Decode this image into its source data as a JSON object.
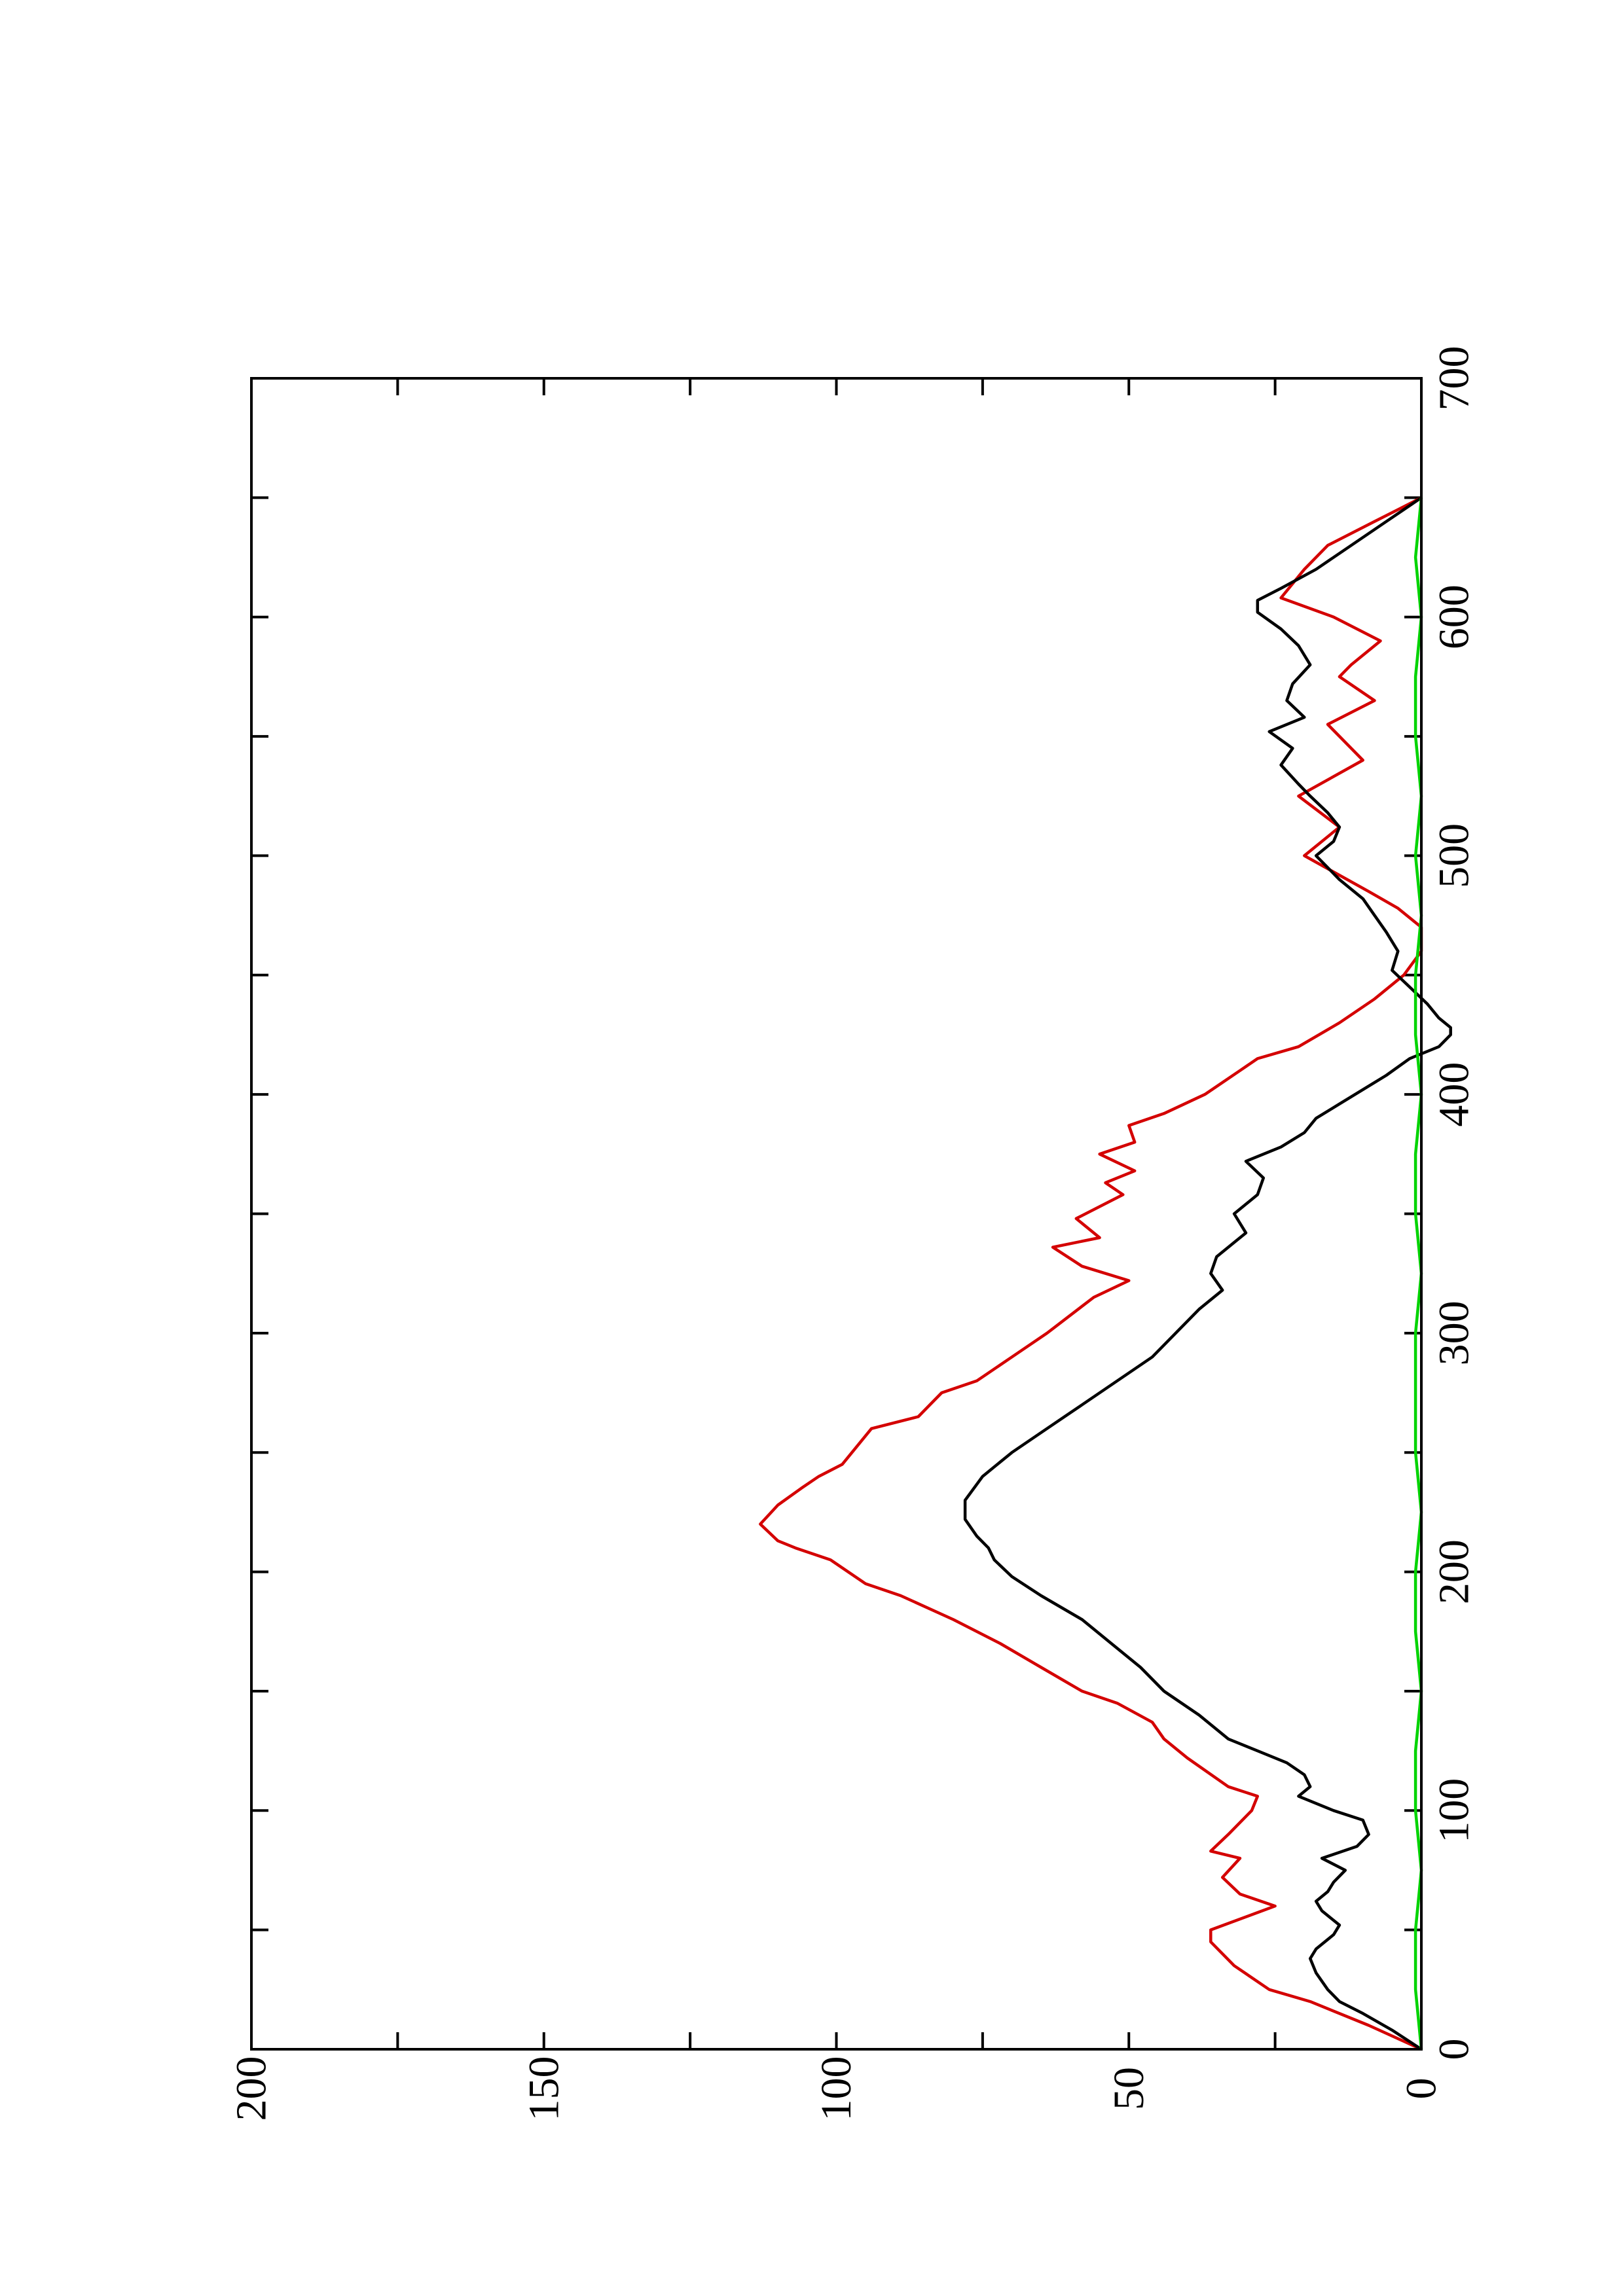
{
  "chart_data": {
    "type": "line",
    "orientation": "rotated-90-ccw",
    "title": "",
    "xlabel": "",
    "ylabel": "",
    "xlim": [
      0,
      700
    ],
    "ylim": [
      0,
      200
    ],
    "x_ticks": [
      0,
      100,
      200,
      300,
      400,
      500,
      600,
      700
    ],
    "x_minor_ticks": [
      50,
      150,
      250,
      350,
      450,
      550,
      650
    ],
    "y_ticks": [
      0,
      50,
      100,
      150,
      200
    ],
    "y_minor_ticks": [
      25,
      75,
      125,
      175
    ],
    "x_tick_labels": [
      "0",
      "100",
      "200",
      "300",
      "400",
      "500",
      "600",
      "700"
    ],
    "y_tick_labels": [
      "0",
      "50",
      "100",
      "150",
      "200"
    ],
    "grid": false,
    "legend": "none",
    "series": [
      {
        "color": "#d40000",
        "x": [
          0,
          10,
          20,
          25,
          35,
          45,
          50,
          60,
          65,
          72,
          80,
          83,
          90,
          100,
          106,
          110,
          122,
          130,
          137,
          145,
          150,
          160,
          170,
          180,
          190,
          195,
          205,
          210,
          213,
          220,
          228,
          235,
          240,
          245,
          260,
          265,
          275,
          280,
          290,
          300,
          315,
          322,
          328,
          336,
          340,
          348,
          358,
          363,
          368,
          375,
          380,
          387,
          392,
          400,
          410,
          415,
          420,
          430,
          440,
          450,
          460,
          470,
          478,
          485,
          500,
          512,
          525,
          540,
          555,
          565,
          575,
          580,
          590,
          600,
          608,
          620,
          630,
          640,
          645,
          650
        ],
        "y": [
          0,
          9,
          19,
          26,
          32,
          36,
          36,
          25,
          31,
          34,
          31,
          36,
          33,
          29,
          28,
          33,
          40,
          44,
          46,
          52,
          58,
          65,
          72,
          80,
          89,
          95,
          101,
          107,
          110,
          113,
          110,
          106,
          103,
          99,
          94,
          86,
          82,
          76,
          70,
          64,
          56,
          50,
          58,
          63,
          55,
          59,
          51,
          54,
          49,
          55,
          49,
          50,
          44,
          37,
          31,
          28,
          21,
          14,
          8,
          3,
          0,
          0,
          4,
          9,
          20,
          14,
          21,
          10,
          16,
          8,
          14,
          12,
          7,
          15,
          24,
          20,
          16,
          8,
          4,
          0
        ]
      },
      {
        "color": "#000000",
        "x": [
          0,
          8,
          15,
          20,
          25,
          32,
          38,
          42,
          48,
          52,
          58,
          62,
          66,
          70,
          75,
          80,
          85,
          90,
          96,
          100,
          106,
          110,
          115,
          120,
          125,
          130,
          140,
          150,
          160,
          170,
          180,
          190,
          198,
          205,
          210,
          215,
          222,
          230,
          240,
          250,
          260,
          270,
          280,
          290,
          300,
          310,
          318,
          325,
          332,
          338,
          342,
          350,
          358,
          365,
          372,
          378,
          384,
          390,
          396,
          402,
          408,
          415,
          420,
          425,
          428,
          432,
          438,
          445,
          452,
          460,
          468,
          475,
          482,
          490,
          500,
          506,
          512,
          518,
          525,
          530,
          538,
          545,
          552,
          558,
          565,
          572,
          580,
          588,
          595,
          602,
          607,
          612,
          620,
          630,
          640,
          650
        ],
        "y": [
          0,
          5,
          10,
          14,
          16,
          18,
          19,
          18,
          15,
          14,
          17,
          18,
          16,
          15,
          13,
          17,
          11,
          9,
          10,
          15,
          21,
          19,
          20,
          23,
          28,
          33,
          38,
          44,
          48,
          53,
          58,
          65,
          70,
          73,
          74,
          76,
          78,
          78,
          75,
          70,
          64,
          58,
          52,
          46,
          42,
          38,
          34,
          36,
          35,
          32,
          30,
          32,
          28,
          27,
          30,
          24,
          20,
          18,
          14,
          10,
          6,
          2,
          -3,
          -5,
          -5,
          -3,
          -1,
          2,
          5,
          4,
          6,
          8,
          10,
          14,
          18,
          15,
          14,
          16,
          19,
          21,
          24,
          22,
          26,
          20,
          23,
          22,
          19,
          21,
          24,
          28,
          28,
          24,
          18,
          12,
          6,
          0
        ]
      },
      {
        "color": "#00d400",
        "x": [
          0,
          25,
          50,
          75,
          100,
          125,
          150,
          175,
          200,
          225,
          250,
          275,
          300,
          325,
          350,
          375,
          400,
          425,
          450,
          475,
          500,
          525,
          550,
          575,
          600,
          625,
          650
        ],
        "y": [
          0,
          1,
          1,
          0,
          1,
          1,
          0,
          1,
          1,
          0,
          1,
          1,
          1,
          0,
          1,
          1,
          0,
          1,
          1,
          0,
          1,
          0,
          1,
          1,
          0,
          1,
          0
        ]
      }
    ]
  }
}
